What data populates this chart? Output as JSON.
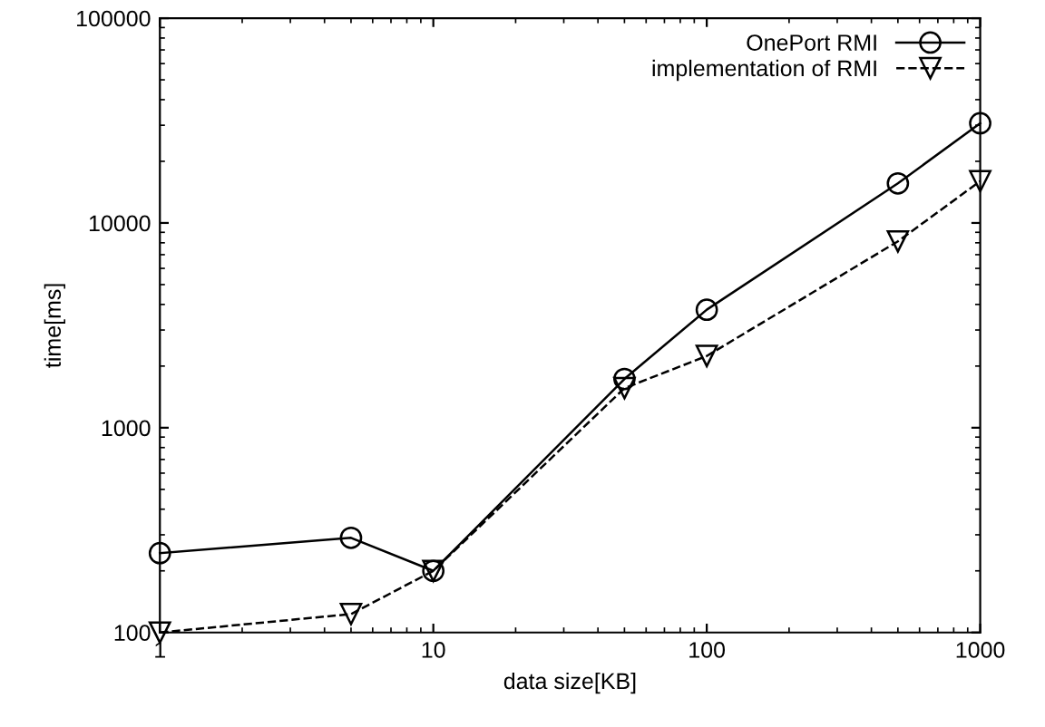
{
  "chart_data": {
    "type": "line",
    "xlabel": "data size[KB]",
    "ylabel": "time[ms]",
    "x": [
      1,
      5,
      10,
      50,
      100,
      500,
      1000
    ],
    "series": [
      {
        "name": "OnePort RMI",
        "color": "#000000",
        "marker": "circle",
        "line_style": "solid",
        "values": [
          244,
          290,
          200,
          1730,
          3770,
          15600,
          30700
        ]
      },
      {
        "name": "implementation of RMI",
        "color": "#000000",
        "marker": "triangle",
        "line_style": "dashed",
        "values": [
          100,
          123,
          200,
          1560,
          2240,
          8130,
          16000
        ]
      }
    ],
    "log": "xy",
    "xlim": [
      1,
      1000
    ],
    "ylim": [
      100,
      100000
    ],
    "xticks": [
      1,
      10,
      100,
      1000
    ],
    "yticks": [
      100,
      1000,
      10000,
      100000
    ],
    "grid": false,
    "legend": "top right"
  }
}
